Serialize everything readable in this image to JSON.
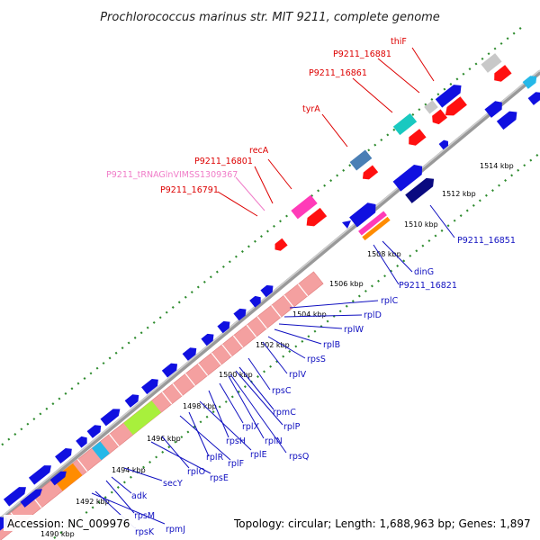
{
  "title": "Prochlorococcus marinus str. MIT 9211, complete genome",
  "footer": {
    "accession": "Accession: NC_009976",
    "summary": "Topology: circular; Length: 1,688,963 bp; Genes: 1,897"
  },
  "colors": {
    "backbone": "#888888",
    "dotted_ring": "#2e8b2e",
    "forward_gene": "#1010e0",
    "reverse_gene": "#ff1010",
    "rrna_operon": "#f4a0a0",
    "label_red": "#dd0000",
    "label_blue": "#1010c0",
    "label_pink": "#f07cc8",
    "teal_gene": "#19c9c0",
    "steel_gene": "#4a7fb5",
    "navy_gene": "#0a0a80",
    "lime_gene": "#a8f03c",
    "orange_gene": "#ff8c00",
    "cyan_gene": "#26b8e8",
    "magenta_gene": "#ff3bb8",
    "grey_gene": "#c8c8c8"
  },
  "kbp_ticks": [
    {
      "label": "1490 kbp"
    },
    {
      "label": "1492 kbp"
    },
    {
      "label": "1494 kbp"
    },
    {
      "label": "1496 kbp"
    },
    {
      "label": "1498 kbp"
    },
    {
      "label": "1500 kbp"
    },
    {
      "label": "1502 kbp"
    },
    {
      "label": "1504 kbp"
    },
    {
      "label": "1506 kbp"
    },
    {
      "label": "1508 kbp"
    },
    {
      "label": "1510 kbp"
    },
    {
      "label": "1512 kbp"
    },
    {
      "label": "1514 kbp"
    }
  ],
  "labels": {
    "thiF": "thiF",
    "p16881": "P9211_16881",
    "p16861": "P9211_16861",
    "tyrA": "tyrA",
    "recA": "recA",
    "p16801": "P9211_16801",
    "trna": "P9211_tRNAGlnVIMSS1309367",
    "p16791": "P9211_16791",
    "p16851": "P9211_16851",
    "dinG": "dinG",
    "p16821": "P9211_16821",
    "rplC": "rplC",
    "rplD": "rplD",
    "rplW": "rplW",
    "rplB": "rplB",
    "rpsS": "rpsS",
    "rplV": "rplV",
    "rpsC": "rpsC",
    "rpmC": "rpmC",
    "rplP": "rplP",
    "rplX": "rplX",
    "rplN": "rplN",
    "rpsH": "rpsH",
    "rplE": "rplE",
    "rpsQ": "rpsQ",
    "rplR": "rplR",
    "rplF": "rplF",
    "rplO": "rplO",
    "rpsE": "rpsE",
    "secY": "secY",
    "adk": "adk",
    "rpsM": "rpsM",
    "rpsK": "rpsK",
    "rpmJ": "rpmJ"
  }
}
